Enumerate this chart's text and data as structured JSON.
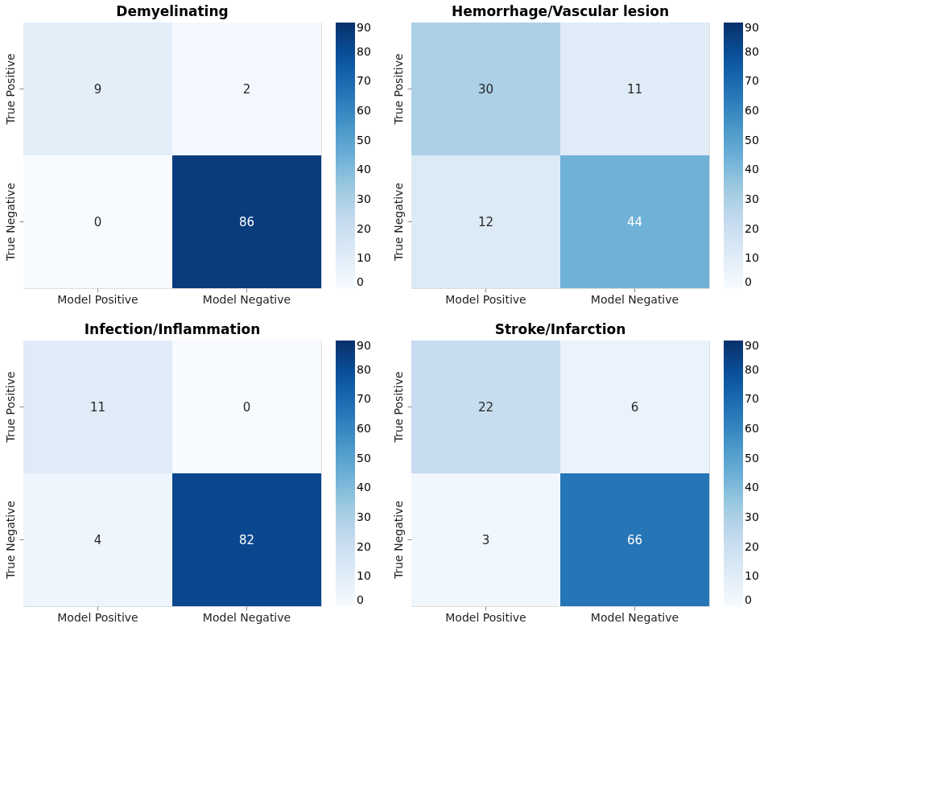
{
  "chart_data": [
    {
      "type": "heatmap",
      "title": "Demyelinating",
      "data_labels": true,
      "categories": [
        "Model Positive",
        "Model Negative"
      ],
      "y_categories": [
        "True Positive",
        "True Negative"
      ],
      "cells": [
        [
          9,
          2
        ],
        [
          0,
          86
        ]
      ],
      "clim": [
        0,
        90
      ],
      "cticks": [
        0,
        10,
        20,
        30,
        40,
        50,
        60,
        70,
        80,
        90
      ]
    },
    {
      "type": "heatmap",
      "title": "Hemorrhage/Vascular lesion",
      "data_labels": true,
      "categories": [
        "Model Positive",
        "Model Negative"
      ],
      "y_categories": [
        "True Positive",
        "True Negative"
      ],
      "cells": [
        [
          30,
          11
        ],
        [
          12,
          44
        ]
      ],
      "clim": [
        0,
        90
      ],
      "cticks": [
        0,
        10,
        20,
        30,
        40,
        50,
        60,
        70,
        80,
        90
      ]
    },
    {
      "type": "heatmap",
      "title": "Infection/Inflammation",
      "data_labels": true,
      "categories": [
        "Model Positive",
        "Model Negative"
      ],
      "y_categories": [
        "True Positive",
        "True Negative"
      ],
      "cells": [
        [
          11,
          0
        ],
        [
          4,
          82
        ]
      ],
      "clim": [
        0,
        90
      ],
      "cticks": [
        0,
        10,
        20,
        30,
        40,
        50,
        60,
        70,
        80,
        90
      ]
    },
    {
      "type": "heatmap",
      "title": "Stroke/Infarction",
      "data_labels": true,
      "categories": [
        "Model Positive",
        "Model Negative"
      ],
      "y_categories": [
        "True Positive",
        "True Negative"
      ],
      "cells": [
        [
          22,
          6
        ],
        [
          3,
          66
        ]
      ],
      "clim": [
        0,
        90
      ],
      "cticks": [
        0,
        10,
        20,
        30,
        40,
        50,
        60,
        70,
        80,
        90
      ]
    }
  ]
}
